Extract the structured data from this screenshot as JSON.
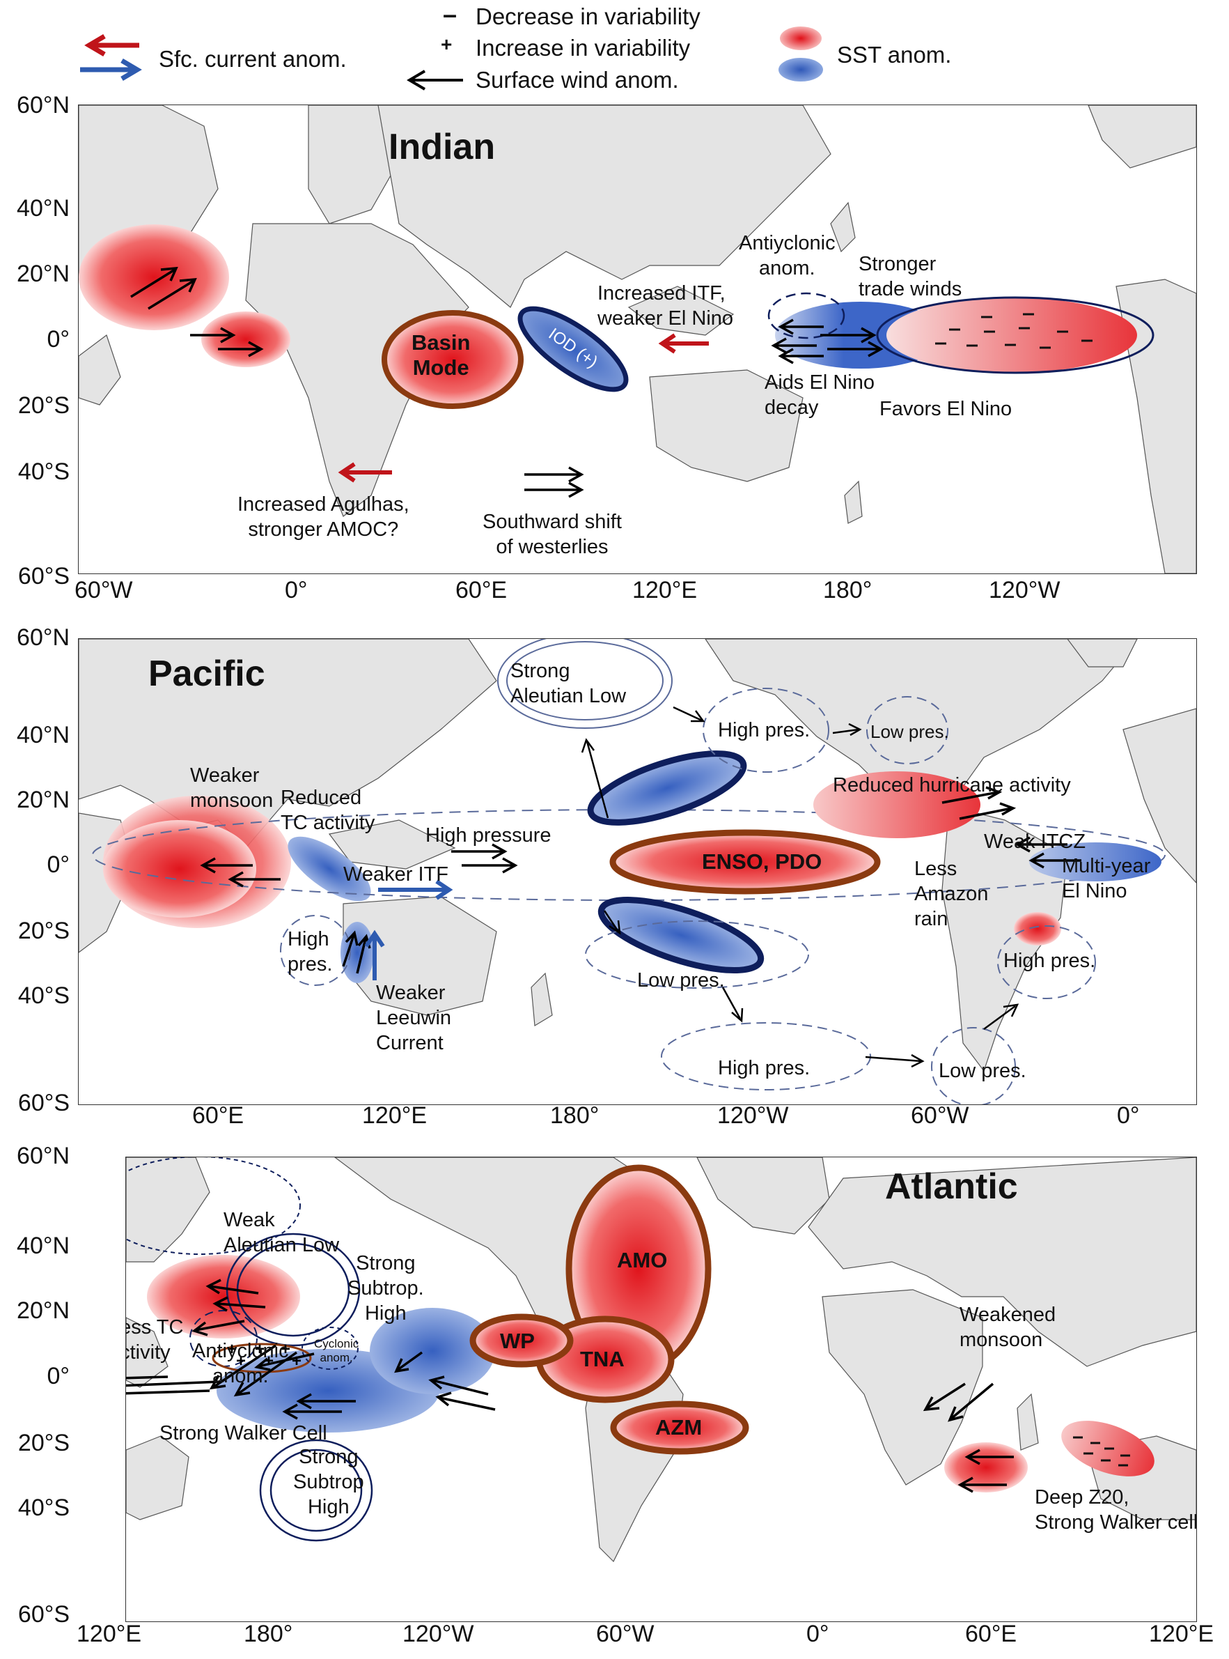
{
  "legend": {
    "current_label": "Sfc. current anom.",
    "minus_symbol": "–",
    "decrease_label": "Decrease in variability",
    "plus_symbol": "+",
    "increase_label": "Increase in variability",
    "wind_label": "Surface wind anom.",
    "sst_label": "SST anom.",
    "colors": {
      "warm_current": "#c0141a",
      "cool_current": "#2e5bb0",
      "warm_sst": "#e8202a",
      "cool_sst": "#3b63c4",
      "outline_brown": "#8b3a10",
      "outline_navy": "#0e1e5c"
    }
  },
  "panel_indian": {
    "title": "Indian",
    "lat_ticks": [
      "60°N",
      "40°N",
      "20°N",
      "0°",
      "20°S",
      "40°S",
      "60°S"
    ],
    "lon_ticks": [
      "60°W",
      "0°",
      "60°E",
      "120°E",
      "180°",
      "120°W"
    ],
    "basin_mode": "Basin\nMode",
    "iod": "IOD (+)",
    "antiyclonic": "Antiyclonic\nanom.",
    "stronger_trade": "Stronger\ntrade winds",
    "increased_itf": "Increased ITF,\nweaker El Nino",
    "aids_el_nino": "Aids El Nino\ndecay",
    "favors_el_nino": "Favors El Nino",
    "agulhas": "Increased Agulhas,\nstronger AMOC?",
    "westerlies": "Southward shift\nof westerlies"
  },
  "panel_pacific": {
    "title": "Pacific",
    "lat_ticks": [
      "60°N",
      "40°N",
      "20°N",
      "0°",
      "20°S",
      "40°S",
      "60°S"
    ],
    "lon_ticks": [
      "60°E",
      "120°E",
      "180°",
      "120°W",
      "60°W",
      "0°"
    ],
    "enso_pdo": "ENSO, PDO",
    "strong_aleutian": "Strong\nAleutian Low",
    "high_pres_na": "High pres.",
    "low_pres_na": "Low pres.",
    "reduced_hurricane": "Reduced hurricane activity",
    "weak_itcz": "Weak ITCZ",
    "multi_year": "Multi-year\nEl Nino",
    "less_amazon": "Less\nAmazon\nrain",
    "high_pres_sa": "High pres.",
    "weaker_monsoon": "Weaker\nmonsoon",
    "reduced_tc": "Reduced\nTC activity",
    "high_pressure": "High pressure",
    "weaker_itf": "Weaker ITF",
    "high_pres_aus": "High\npres.",
    "weaker_leeuwin": "Weaker\nLeeuwin\nCurrent",
    "low_pres_sp": "Low pres.",
    "high_pres_so": "High pres.",
    "low_pres_so": "Low pres."
  },
  "panel_atlantic": {
    "title": "Atlantic",
    "lat_ticks": [
      "60°N",
      "40°N",
      "20°N",
      "0°",
      "20°S",
      "40°S",
      "60°S"
    ],
    "lon_ticks": [
      "120°E",
      "180°",
      "120°W",
      "60°W",
      "0°",
      "60°E",
      "120°E"
    ],
    "amo": "AMO",
    "wp": "WP",
    "tna": "TNA",
    "azm": "AZM",
    "weak_aleutian": "Weak\nAleutian Low",
    "strong_subtrop_n": "Strong\nSubtrop.\nHigh",
    "less_tc": "Less TC\nactivity",
    "antiyclonic": "Antiyclonic\nanom.",
    "cyclonic": "Cyclonic\nanom.",
    "walker_cell": "Strong Walker Cell",
    "strong_subtrop_s": "Strong\nSubtrop\nHigh",
    "weakened_monsoon": "Weakened\nmonsoon",
    "deep_z20": "Deep Z20,\nStrong Walker cell"
  }
}
